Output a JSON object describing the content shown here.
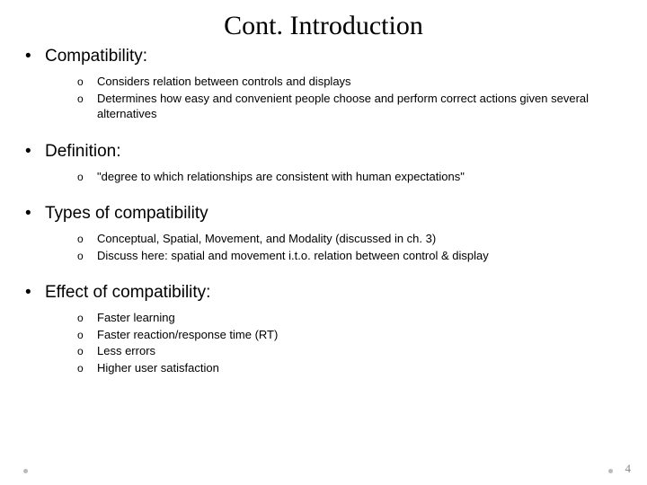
{
  "title": "Cont. Introduction",
  "pageNumber": "4",
  "colors": {
    "background": "#ffffff",
    "text": "#000000",
    "pageNum": "#888888",
    "deco": "#bbbbbb"
  },
  "typography": {
    "title_font": "Garamond, Georgia, serif",
    "title_size_pt": 22,
    "body_font": "Arial, Helvetica, sans-serif",
    "heading_size_pt": 14,
    "sub_size_pt": 10
  },
  "sections": [
    {
      "heading": "Compatibility:",
      "items": [
        "Considers relation between controls and displays",
        "Determines how easy and convenient people choose and perform correct actions given several alternatives"
      ]
    },
    {
      "heading": "Definition:",
      "items": [
        "\"degree to which relationships are consistent with human expectations\""
      ]
    },
    {
      "heading": "Types of compatibility",
      "items": [
        "Conceptual, Spatial, Movement, and Modality (discussed in ch. 3)",
        "Discuss here: spatial and movement i.t.o. relation between control & display"
      ]
    },
    {
      "heading": "Effect of compatibility:",
      "items": [
        "Faster learning",
        "Faster reaction/response time (RT)",
        "Less errors",
        "Higher user satisfaction"
      ]
    }
  ]
}
